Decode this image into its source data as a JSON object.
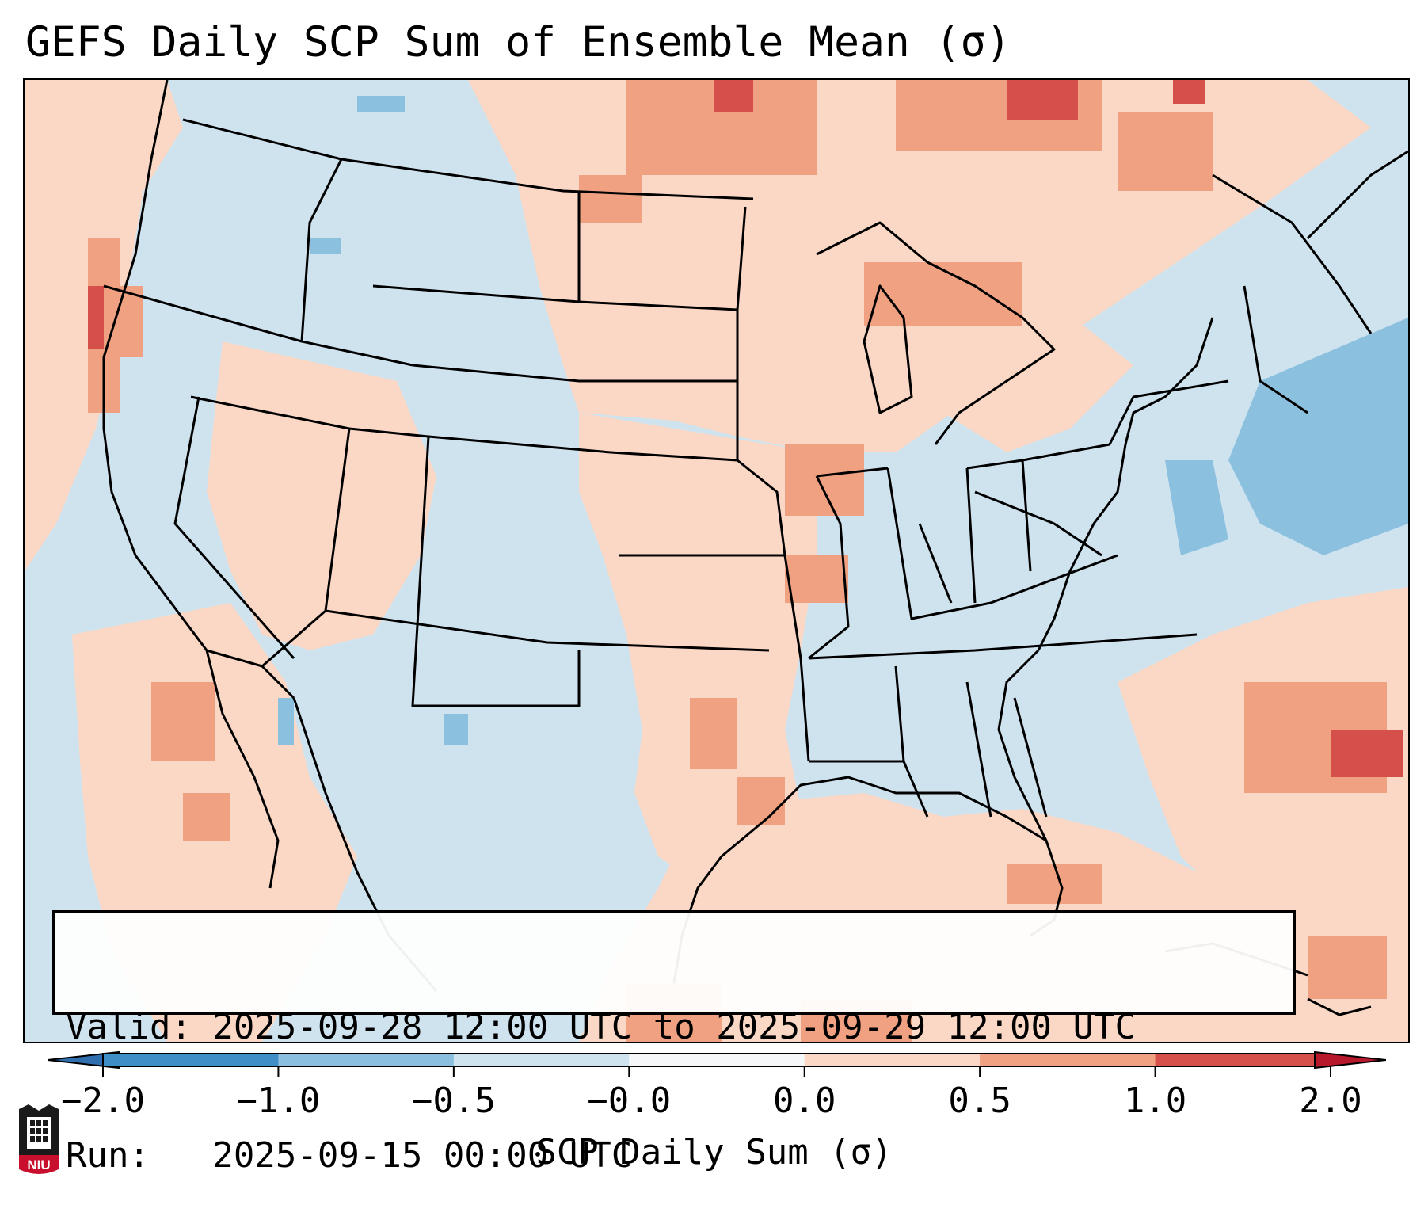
{
  "title": "GEFS Daily SCP Sum of Ensemble Mean (σ)",
  "valid_line": "Valid: 2025-09-28 12:00 UTC to 2025-09-29 12:00 UTC",
  "run_line": "Run:   2025-09-15 00:00 UTC",
  "colorbar": {
    "label": "SCP Daily Sum (σ)",
    "ticks": [
      "−2.0",
      "−1.0",
      "−0.5",
      "−0.0",
      "0.0",
      "0.5",
      "1.0",
      "2.0"
    ],
    "colors": [
      "#3f8ec5",
      "#8cc0df",
      "#cfe3ef",
      "#f5f7f9",
      "#fbd8c6",
      "#efa181",
      "#d5504a"
    ],
    "extend_low_color": "#2f6fb0",
    "extend_high_color": "#b8182c"
  },
  "map": {
    "background_color": "#cfe3ef",
    "land_outline_color": "#000000"
  },
  "logo": {
    "text": "NIU"
  }
}
